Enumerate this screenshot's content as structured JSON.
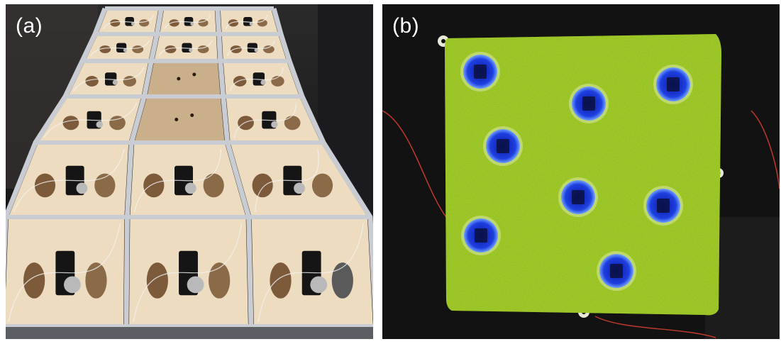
{
  "panels": {
    "a": {
      "label": "(a)"
    },
    "b": {
      "label": "(b)"
    }
  },
  "colors": {
    "frame": "#c9ccd2",
    "floor": "#eddcbf",
    "background": "#121212",
    "grass": "#aad12e",
    "hole": "#1e3fe0"
  },
  "icons": [
    "motor-unit-icon",
    "tube-icon",
    "hole-icon"
  ]
}
